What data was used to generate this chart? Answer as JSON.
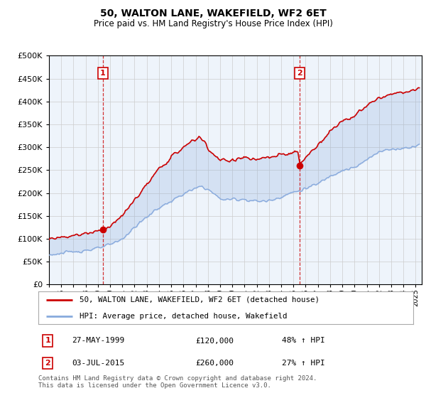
{
  "title": "50, WALTON LANE, WAKEFIELD, WF2 6ET",
  "subtitle": "Price paid vs. HM Land Registry's House Price Index (HPI)",
  "legend_line1": "50, WALTON LANE, WAKEFIELD, WF2 6ET (detached house)",
  "legend_line2": "HPI: Average price, detached house, Wakefield",
  "transaction1_date": "27-MAY-1999",
  "transaction1_price": "£120,000",
  "transaction1_hpi": "48% ↑ HPI",
  "transaction1_year": 1999.41,
  "transaction1_value": 120000,
  "transaction2_date": "03-JUL-2015",
  "transaction2_price": "£260,000",
  "transaction2_hpi": "27% ↑ HPI",
  "transaction2_year": 2015.5,
  "transaction2_value": 260000,
  "footer": "Contains HM Land Registry data © Crown copyright and database right 2024.\nThis data is licensed under the Open Government Licence v3.0.",
  "ylim": [
    0,
    500000
  ],
  "xlim_start": 1995.0,
  "xlim_end": 2025.5,
  "red_color": "#cc0000",
  "blue_color": "#88aadd",
  "fill_color": "#ddeeff",
  "vline_color": "#cc0000",
  "grid_color": "#cccccc",
  "bg_color": "#ffffff",
  "plot_bg_color": "#eef4fb"
}
